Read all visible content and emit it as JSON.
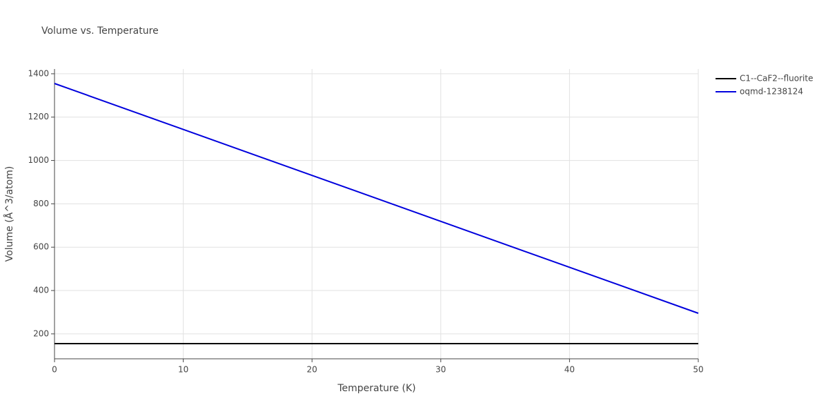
{
  "chart_data": {
    "type": "line",
    "title": "Volume vs. Temperature",
    "x_label": "Temperature (K)",
    "y_label": "Volume (Å^3/atom)",
    "xlim": [
      0,
      50
    ],
    "xticks": [
      0,
      10,
      20,
      30,
      40,
      50
    ],
    "ylim": [
      85,
      1422
    ],
    "yticks": [
      200,
      400,
      600,
      800,
      1000,
      1200,
      1400
    ],
    "grid": true,
    "legend": "right",
    "series": [
      {
        "name": "C1--CaF2--fluorite",
        "color": "#000000",
        "x": [
          0,
          50
        ],
        "values": [
          155,
          155
        ]
      },
      {
        "name": "oqmd-1238124",
        "color": "#0000dd",
        "x": [
          0,
          50
        ],
        "values": [
          1355,
          295
        ]
      }
    ]
  }
}
